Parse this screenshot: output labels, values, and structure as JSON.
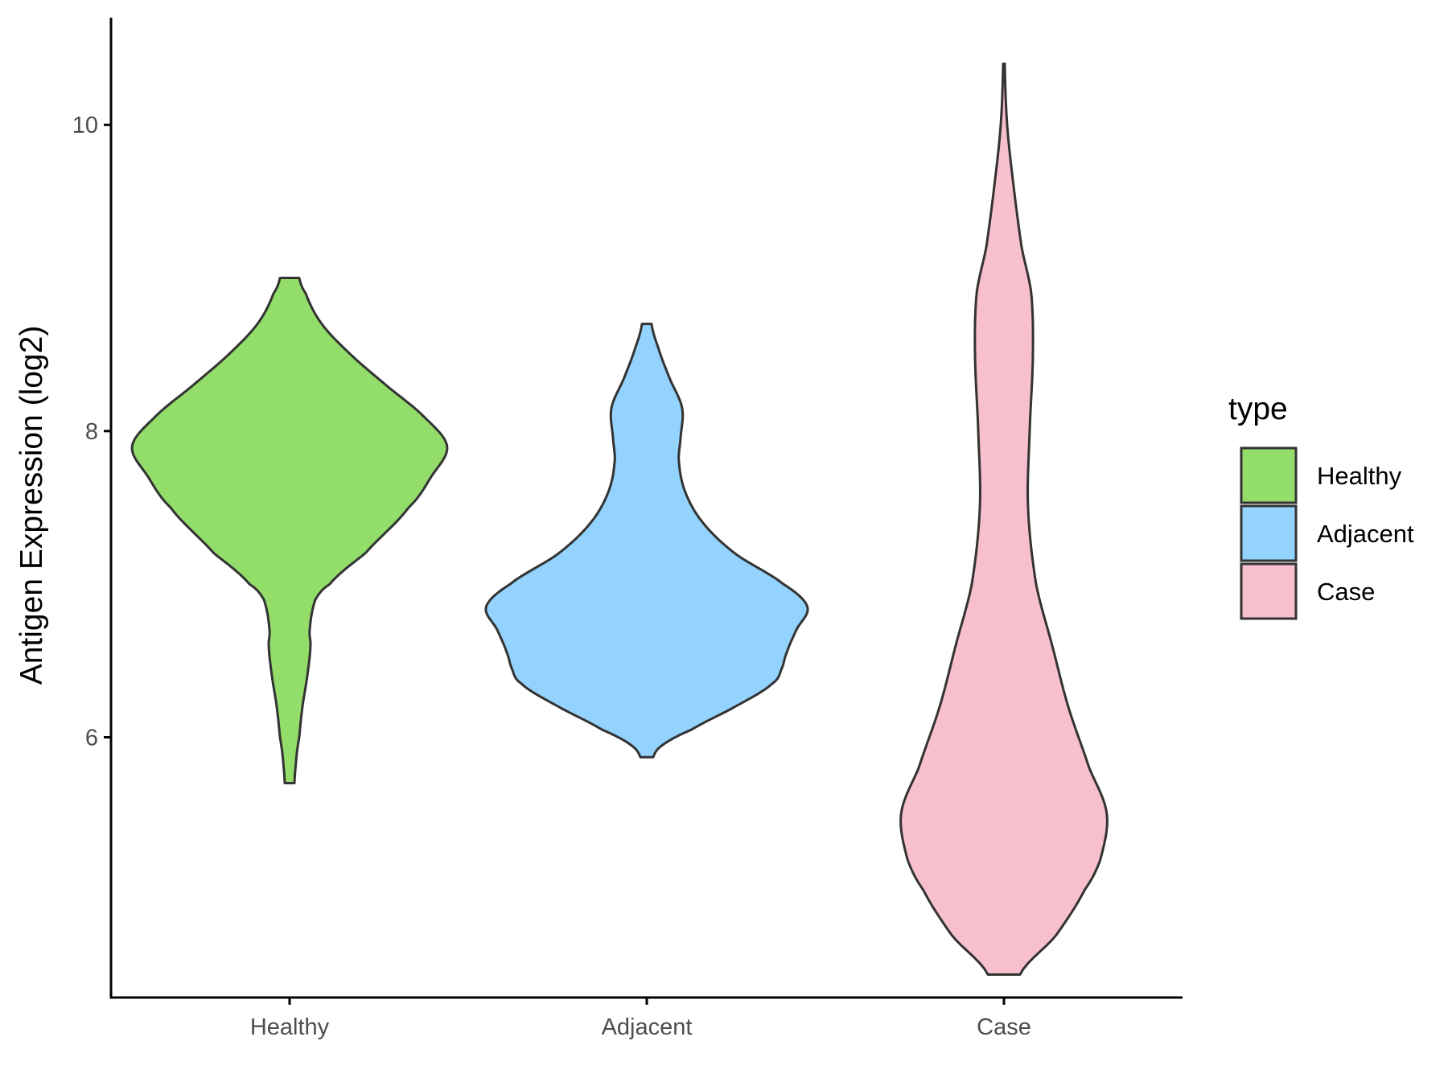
{
  "chart_data": {
    "type": "violin",
    "title": "",
    "xlabel": "",
    "ylabel": "Antigen Expression (log2)",
    "categories": [
      "Healthy",
      "Adjacent",
      "Case"
    ],
    "y_ticks": [
      6,
      8,
      10
    ],
    "y_tick_labels": [
      "6",
      "8",
      "10"
    ],
    "ylim": [
      4.3,
      10.7
    ],
    "grid": false,
    "legend": {
      "title": "type",
      "placement": "right",
      "entries": [
        "Healthy",
        "Adjacent",
        "Case"
      ]
    },
    "colors": {
      "Healthy": "#93dd6a",
      "Adjacent": "#93d3fd",
      "Case": "#f7c0cc",
      "outline": "#333333"
    },
    "series": [
      {
        "name": "Healthy",
        "min": 5.7,
        "max": 9.0,
        "density": [
          [
            5.7,
            0.03
          ],
          [
            5.9,
            0.045
          ],
          [
            6.0,
            0.06
          ],
          [
            6.2,
            0.08
          ],
          [
            6.4,
            0.11
          ],
          [
            6.6,
            0.13
          ],
          [
            6.7,
            0.125
          ],
          [
            6.9,
            0.16
          ],
          [
            7.0,
            0.25
          ],
          [
            7.2,
            0.47
          ],
          [
            7.5,
            0.74
          ],
          [
            7.7,
            0.88
          ],
          [
            7.9,
            0.98
          ],
          [
            8.1,
            0.83
          ],
          [
            8.3,
            0.6
          ],
          [
            8.5,
            0.38
          ],
          [
            8.7,
            0.2
          ],
          [
            8.9,
            0.1
          ],
          [
            9.0,
            0.06
          ]
        ]
      },
      {
        "name": "Adjacent",
        "min": 5.87,
        "max": 8.7,
        "density": [
          [
            5.87,
            0.04
          ],
          [
            5.95,
            0.1
          ],
          [
            6.05,
            0.28
          ],
          [
            6.2,
            0.55
          ],
          [
            6.35,
            0.78
          ],
          [
            6.45,
            0.84
          ],
          [
            6.55,
            0.87
          ],
          [
            6.7,
            0.93
          ],
          [
            6.85,
            1.0
          ],
          [
            7.0,
            0.85
          ],
          [
            7.2,
            0.55
          ],
          [
            7.4,
            0.35
          ],
          [
            7.6,
            0.24
          ],
          [
            7.8,
            0.2
          ],
          [
            7.95,
            0.21
          ],
          [
            8.15,
            0.22
          ],
          [
            8.35,
            0.14
          ],
          [
            8.55,
            0.07
          ],
          [
            8.7,
            0.03
          ]
        ]
      },
      {
        "name": "Case",
        "min": 4.45,
        "max": 10.4,
        "density": [
          [
            4.45,
            0.1
          ],
          [
            4.7,
            0.32
          ],
          [
            5.0,
            0.5
          ],
          [
            5.2,
            0.6
          ],
          [
            5.5,
            0.64
          ],
          [
            5.8,
            0.53
          ],
          [
            6.2,
            0.4
          ],
          [
            6.6,
            0.3
          ],
          [
            7.0,
            0.2
          ],
          [
            7.5,
            0.15
          ],
          [
            8.0,
            0.16
          ],
          [
            8.5,
            0.18
          ],
          [
            8.9,
            0.17
          ],
          [
            9.2,
            0.11
          ],
          [
            9.6,
            0.06
          ],
          [
            10.0,
            0.02
          ],
          [
            10.4,
            0.005
          ]
        ]
      }
    ]
  }
}
